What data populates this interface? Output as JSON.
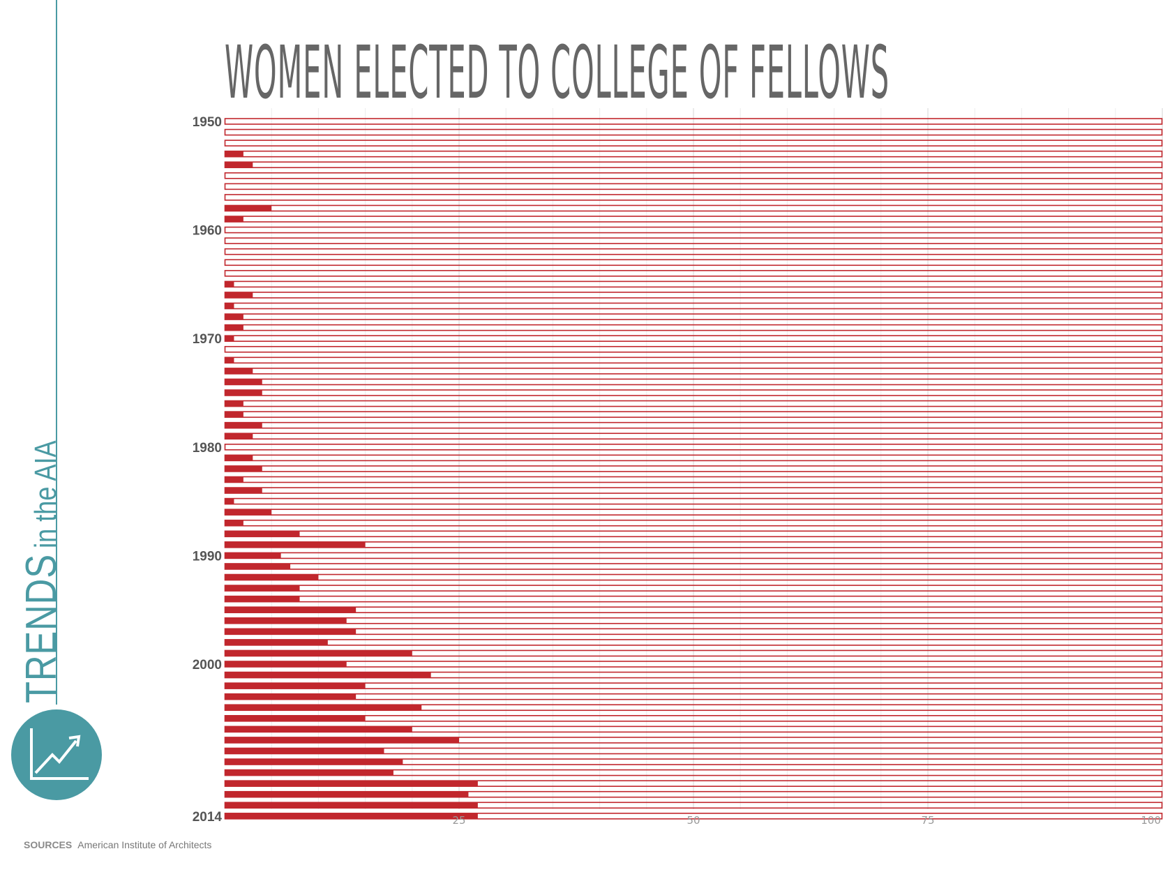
{
  "side": {
    "brand_word": "TRENDS",
    "brand_rest": "in the AIA",
    "accent": "#4a9aa3",
    "icon": "trend-chart-icon"
  },
  "chart_data": {
    "type": "bar",
    "orientation": "horizontal",
    "title": "WOMEN ELECTED TO COLLEGE OF FELLOWS",
    "xlabel": "",
    "ylabel": "",
    "xlim": [
      0,
      100
    ],
    "x_ticks": [
      "25",
      "50",
      "75",
      "100"
    ],
    "x_tick_values": [
      25,
      50,
      75,
      100
    ],
    "y_tick_labels": [
      "1950",
      "1960",
      "1970",
      "1980",
      "1990",
      "2000",
      "2014"
    ],
    "y_tick_years": [
      1950,
      1960,
      1970,
      1980,
      1990,
      2000,
      2014
    ],
    "grid": true,
    "bar_color": "#c1272d",
    "track_color": "#c1272d",
    "categories": [
      1950,
      1951,
      1952,
      1953,
      1954,
      1955,
      1956,
      1957,
      1958,
      1959,
      1960,
      1961,
      1962,
      1963,
      1964,
      1965,
      1966,
      1967,
      1968,
      1969,
      1970,
      1971,
      1972,
      1973,
      1974,
      1975,
      1976,
      1977,
      1978,
      1979,
      1980,
      1981,
      1982,
      1983,
      1984,
      1985,
      1986,
      1987,
      1988,
      1989,
      1990,
      1991,
      1992,
      1993,
      1994,
      1995,
      1996,
      1997,
      1998,
      1999,
      2000,
      2001,
      2002,
      2003,
      2004,
      2005,
      2006,
      2007,
      2008,
      2009,
      2010,
      2011,
      2012,
      2013,
      2014
    ],
    "values": [
      0,
      0,
      0,
      2,
      3,
      0,
      0,
      0,
      5,
      2,
      0,
      0,
      0,
      0,
      0,
      1,
      3,
      1,
      2,
      2,
      1,
      0,
      1,
      3,
      4,
      4,
      2,
      2,
      4,
      3,
      0,
      3,
      4,
      2,
      4,
      1,
      5,
      2,
      8,
      15,
      6,
      7,
      10,
      8,
      8,
      14,
      13,
      14,
      11,
      20,
      13,
      22,
      15,
      14,
      21,
      15,
      20,
      25,
      17,
      19,
      18,
      27,
      26,
      27,
      27
    ]
  },
  "sources": {
    "label": "SOURCES",
    "text": "American Institute of Architects"
  }
}
